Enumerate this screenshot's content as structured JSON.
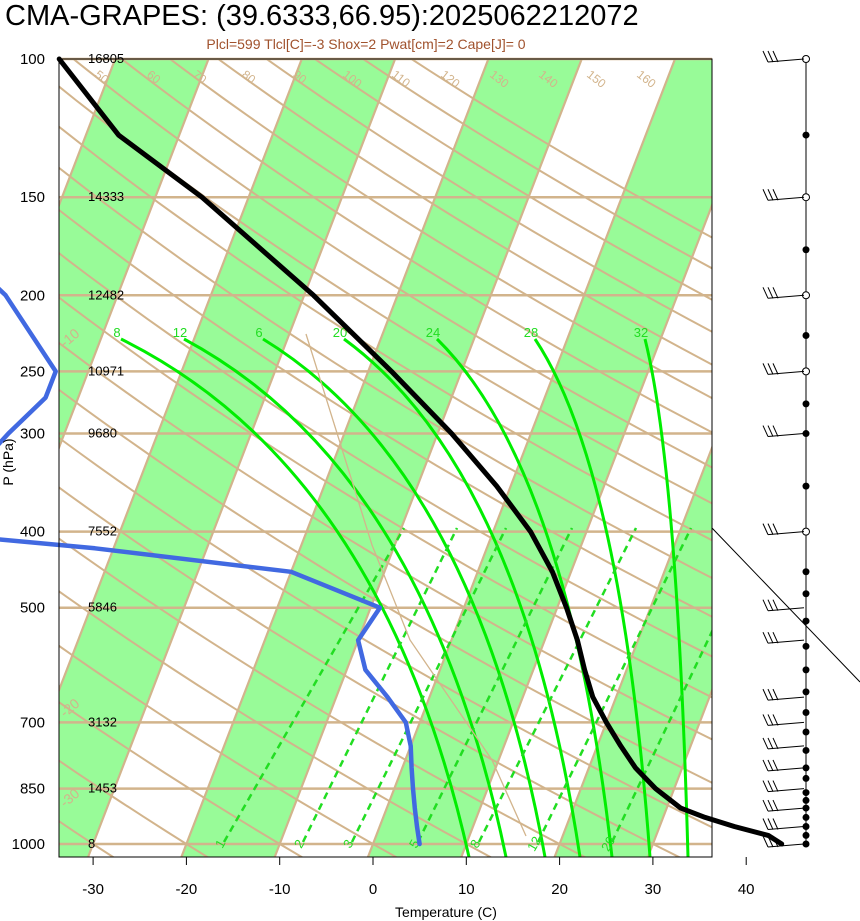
{
  "title": "CMA-GRAPES: (39.6333,66.95):2025062212072",
  "subtitle": "Plcl=599 Tlcl[C]=-3 Shox=2 Pwat[cm]=2 Cape[J]= 0",
  "colors": {
    "temperature": "#000000",
    "dewpoint": "#4169e1",
    "isotherm_band": "#98fb98",
    "guide_lines": "#d2b48c",
    "moist_adiabat": "#00ee00",
    "mixing_ratio": "#22dd22",
    "parcel": "#d2b48c"
  },
  "chart_data": {
    "type": "skew-t",
    "xlabel": "Temperature (C)",
    "ylabel": "P (hPa)",
    "x_ticks": [
      -30,
      -20,
      -10,
      0,
      10,
      20,
      30,
      40
    ],
    "xlim": [
      -33,
      50
    ],
    "ylim": [
      1000,
      100
    ],
    "pressure_levels": [
      {
        "p": 100,
        "label": "100",
        "height": "16805"
      },
      {
        "p": 150,
        "label": "150",
        "height": "14333"
      },
      {
        "p": 200,
        "label": "200",
        "height": "12482"
      },
      {
        "p": 250,
        "label": "250",
        "height": "10971"
      },
      {
        "p": 300,
        "label": "300",
        "height": "9680"
      },
      {
        "p": 400,
        "label": "400",
        "height": "7552"
      },
      {
        "p": 500,
        "label": "500",
        "height": "5846"
      },
      {
        "p": 700,
        "label": "700",
        "height": "3132"
      },
      {
        "p": 850,
        "label": "850",
        "height": "1453"
      },
      {
        "p": 1000,
        "label": "1000",
        "height": "8"
      }
    ],
    "series": [
      {
        "key": "temperature",
        "points": [
          {
            "p": 1000,
            "t": 43.8
          },
          {
            "p": 975,
            "t": 42.0
          },
          {
            "p": 950,
            "t": 38.0
          },
          {
            "p": 925,
            "t": 34.5
          },
          {
            "p": 900,
            "t": 31.5
          },
          {
            "p": 850,
            "t": 28.0
          },
          {
            "p": 800,
            "t": 25.0
          },
          {
            "p": 750,
            "t": 22.5
          },
          {
            "p": 700,
            "t": 20.0
          },
          {
            "p": 650,
            "t": 17.5
          },
          {
            "p": 600,
            "t": 15.5
          },
          {
            "p": 550,
            "t": 13.5
          },
          {
            "p": 500,
            "t": 11.0
          },
          {
            "p": 450,
            "t": 8.0
          },
          {
            "p": 400,
            "t": 4.0
          },
          {
            "p": 350,
            "t": -1.5
          },
          {
            "p": 300,
            "t": -8.5
          },
          {
            "p": 250,
            "t": -17.5
          },
          {
            "p": 200,
            "t": -29.0
          },
          {
            "p": 150,
            "t": -45.0
          },
          {
            "p": 125,
            "t": -56.5
          },
          {
            "p": 100,
            "t": -66.0
          }
        ]
      },
      {
        "key": "dewpoint",
        "points": [
          {
            "p": 1000,
            "t": 5.0
          },
          {
            "p": 950,
            "t": 4.0
          },
          {
            "p": 900,
            "t": 3.0
          },
          {
            "p": 850,
            "t": 2.0
          },
          {
            "p": 800,
            "t": 1.0
          },
          {
            "p": 750,
            "t": 0.0
          },
          {
            "p": 700,
            "t": -1.5
          },
          {
            "p": 650,
            "t": -4.5
          },
          {
            "p": 600,
            "t": -8.0
          },
          {
            "p": 550,
            "t": -10.0
          },
          {
            "p": 500,
            "t": -9.0
          },
          {
            "p": 450,
            "t": -20.0
          },
          {
            "p": 420,
            "t": -42.0
          },
          {
            "p": 400,
            "t": -62.0
          },
          {
            "p": 350,
            "t": -59.0
          },
          {
            "p": 300,
            "t": -56.0
          },
          {
            "p": 270,
            "t": -53.5
          },
          {
            "p": 250,
            "t": -53.5
          },
          {
            "p": 200,
            "t": -62.0
          },
          {
            "p": 175,
            "t": -69.0
          },
          {
            "p": 150,
            "t": -73.0
          },
          {
            "p": 125,
            "t": -77.0
          },
          {
            "p": 100,
            "t": -78.0
          }
        ]
      }
    ],
    "isotherms": [
      -130,
      -120,
      -110,
      -100,
      -90,
      -80,
      -70,
      -60,
      -50,
      -40,
      -30,
      -20,
      -10,
      0,
      10,
      20,
      30,
      40
    ],
    "isotherm_labels": [
      {
        "t": 30,
        "label": "30"
      },
      {
        "t": 20,
        "label": "20"
      },
      {
        "t": 10,
        "label": "10"
      },
      {
        "t": 0,
        "label": "0"
      },
      {
        "t": -10,
        "label": "-10"
      },
      {
        "t": -20,
        "label": "-20"
      },
      {
        "t": -30,
        "label": "-30"
      }
    ],
    "dry_adiabat_labels": [
      "50",
      "60",
      "70",
      "80",
      "90",
      "100",
      "110",
      "120",
      "130",
      "140",
      "150",
      "160"
    ],
    "moist_adiabat_labels": [
      "8",
      "12",
      "6",
      "20",
      "24",
      "28",
      "32"
    ],
    "mixing_ratio_labels": [
      "1",
      "2",
      "3",
      "5",
      "8",
      "12",
      "20"
    ],
    "wind_levels": [
      100,
      150,
      200,
      250,
      300,
      400,
      500,
      700,
      850,
      1000
    ]
  }
}
